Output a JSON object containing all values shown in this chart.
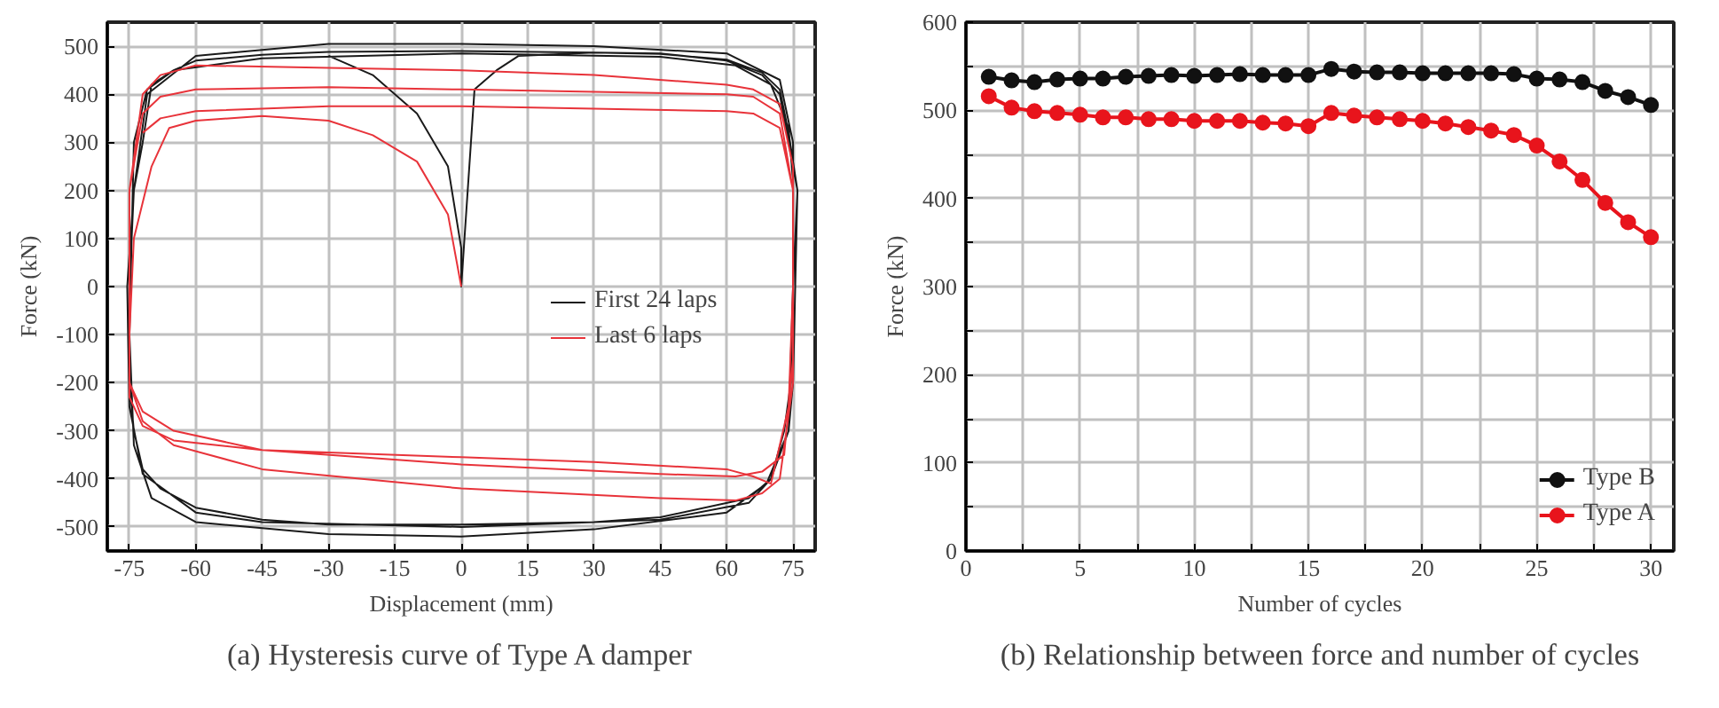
{
  "chart_data": [
    {
      "type": "line",
      "xlabel": "Displacement (mm)",
      "ylabel": "Force (kN)",
      "xlim": [
        -80,
        80
      ],
      "ylim": [
        -550,
        550
      ],
      "xticks": [
        -75,
        -60,
        -45,
        -30,
        -15,
        0,
        15,
        30,
        45,
        60,
        75
      ],
      "yticks": [
        -500,
        -400,
        -300,
        -200,
        -100,
        0,
        100,
        200,
        300,
        400,
        500
      ],
      "grid": true,
      "legend": "center right",
      "marker": "none",
      "annotations": [
        "(a) Hysteresis curve of Type A damper"
      ],
      "series": [
        {
          "name": "First 24 laps",
          "color": "#1a1a1a",
          "x": [
            -30,
            -20,
            -10,
            -3,
            0,
            0,
            3,
            8,
            13,
            30,
            45,
            60,
            68,
            72,
            74,
            76,
            75,
            74.5,
            73,
            70,
            65,
            45,
            30,
            0,
            -30,
            -45,
            -60,
            -68,
            -72,
            -74,
            -75,
            -75,
            -74,
            -72,
            -70,
            -65,
            -60,
            -45,
            -30,
            0,
            30,
            45,
            60,
            68,
            72,
            74,
            76,
            75.5,
            75,
            74,
            70,
            65,
            45,
            0,
            -45,
            -60,
            -72,
            -75,
            -75.5,
            -74,
            -71,
            -60,
            -30,
            0,
            30,
            60,
            72,
            75,
            75,
            74,
            69,
            60,
            30,
            0,
            -30,
            -60,
            -70,
            -74,
            -75,
            -74,
            -71,
            -65,
            -45,
            0,
            45,
            62,
            70,
            74,
            75
          ],
          "values": [
            480,
            440,
            360,
            250,
            80,
            0,
            410,
            450,
            480,
            487,
            485,
            470,
            440,
            400,
            300,
            200,
            0,
            -200,
            -300,
            -400,
            -440,
            -480,
            -490,
            -495,
            -495,
            -485,
            -460,
            -420,
            -380,
            -300,
            -200,
            0,
            200,
            300,
            420,
            450,
            470,
            482,
            488,
            490,
            487,
            484,
            472,
            445,
            410,
            320,
            200,
            0,
            -200,
            -300,
            -400,
            -450,
            -485,
            -500,
            -490,
            -470,
            -390,
            -250,
            0,
            200,
            400,
            480,
            505,
            505,
            500,
            485,
            430,
            300,
            0,
            -300,
            -410,
            -470,
            -505,
            -520,
            -515,
            -490,
            -440,
            -330,
            -100,
            300,
            410,
            450,
            475,
            485,
            478,
            460,
            420,
            330,
            220
          ]
        },
        {
          "name": "Last 6 laps",
          "color": "#e8333a",
          "x": [
            0,
            -3,
            -10,
            -20,
            -30,
            -45,
            -60,
            -66,
            -70,
            -74,
            -75,
            -75,
            -72,
            -65,
            -45,
            -30,
            0,
            30,
            60,
            66,
            70,
            74,
            75,
            75,
            72,
            66,
            60,
            30,
            0,
            -30,
            -60,
            -68,
            -72,
            -75,
            -75,
            -72,
            -65,
            -45,
            0,
            45,
            62,
            68,
            72,
            75,
            75,
            72,
            66,
            60,
            30,
            0,
            -30,
            -60,
            -68,
            -72,
            -75,
            -75,
            -72,
            -65,
            -45,
            0,
            45,
            62,
            68,
            73,
            75,
            75,
            72,
            66,
            60,
            30,
            0,
            -30,
            -60,
            -68,
            -72
          ],
          "values": [
            0,
            150,
            260,
            315,
            345,
            355,
            345,
            330,
            250,
            100,
            -100,
            -230,
            -290,
            -320,
            -340,
            -345,
            -355,
            -365,
            -380,
            -395,
            -410,
            -250,
            0,
            250,
            380,
            410,
            420,
            440,
            450,
            455,
            460,
            440,
            400,
            200,
            -200,
            -280,
            -330,
            -380,
            -420,
            -440,
            -445,
            -430,
            -400,
            -200,
            200,
            360,
            395,
            400,
            405,
            410,
            415,
            410,
            395,
            360,
            200,
            -200,
            -260,
            -300,
            -340,
            -370,
            -390,
            -395,
            -385,
            -350,
            -150,
            200,
            330,
            360,
            365,
            370,
            375,
            375,
            365,
            350,
            320
          ]
        }
      ]
    },
    {
      "type": "line",
      "xlabel": "Number of cycles",
      "ylabel": "Force (kN)",
      "xlim": [
        0,
        31
      ],
      "ylim": [
        0,
        600
      ],
      "xticks": [
        0,
        {
          "value": 2.5,
          "label": null
        },
        5,
        {
          "value": 7.5,
          "label": null
        },
        10,
        {
          "value": 12.5,
          "label": null
        },
        15,
        {
          "value": 17.5,
          "label": null
        },
        20,
        {
          "value": 22.5,
          "label": null
        },
        25,
        {
          "value": 27.5,
          "label": null
        },
        30
      ],
      "yticks": [
        0,
        {
          "value": 50,
          "label": null
        },
        100,
        {
          "value": 150,
          "label": null
        },
        200,
        {
          "value": 250,
          "label": null
        },
        300,
        {
          "value": 350,
          "label": null
        },
        400,
        {
          "value": 450,
          "label": null
        },
        500,
        {
          "value": 550,
          "label": null
        },
        600
      ],
      "grid": true,
      "legend": "bottom right",
      "marker": "circle",
      "annotations": [
        "(b) Relationship between force and number of cycles"
      ],
      "x": [
        1,
        2,
        3,
        4,
        5,
        6,
        7,
        8,
        9,
        10,
        11,
        12,
        13,
        14,
        15,
        16,
        17,
        18,
        19,
        20,
        21,
        22,
        23,
        24,
        25,
        26,
        27,
        28,
        29,
        30
      ],
      "series": [
        {
          "name": "Type B",
          "color": "#111111",
          "values": [
            538,
            534,
            532,
            535,
            536,
            536,
            538,
            539,
            540,
            539,
            540,
            541,
            540,
            540,
            540,
            547,
            544,
            543,
            543,
            542,
            542,
            542,
            542,
            541,
            536,
            535,
            532,
            522,
            515,
            506
          ]
        },
        {
          "name": "Type A",
          "color": "#e8141c",
          "values": [
            516,
            503,
            499,
            497,
            495,
            492,
            492,
            490,
            490,
            488,
            488,
            488,
            486,
            485,
            482,
            497,
            494,
            492,
            490,
            488,
            485,
            481,
            477,
            472,
            460,
            442,
            421,
            395,
            373,
            356
          ]
        }
      ]
    }
  ]
}
